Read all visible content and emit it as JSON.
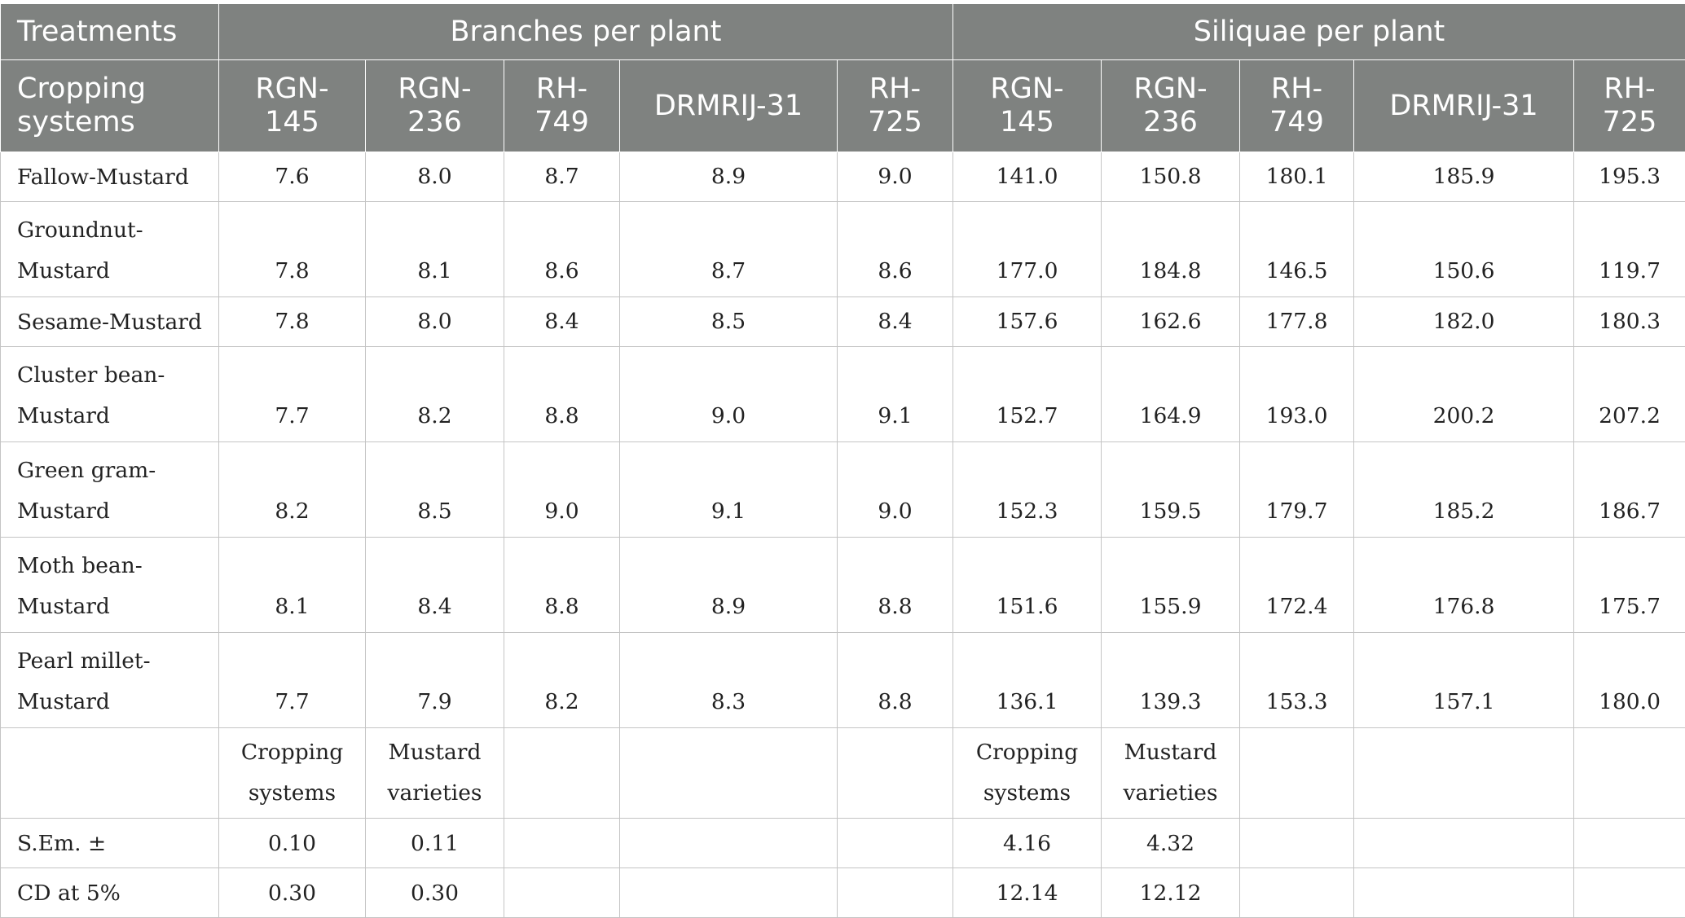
{
  "header": {
    "treatments": "Treatments",
    "branches": "Branches per plant",
    "siliquae": "Siliquae per plant",
    "cropping_systems": [
      "Cropping",
      "systems"
    ],
    "varieties": [
      [
        "RGN-",
        "145"
      ],
      [
        "RGN-",
        "236"
      ],
      [
        "RH-",
        "749"
      ],
      [
        "DRMRIJ-31"
      ],
      [
        "RH-",
        "725"
      ]
    ]
  },
  "rows": [
    {
      "label": [
        "Fallow-Mustard"
      ],
      "branches": [
        "7.6",
        "8.0",
        "8.7",
        "8.9",
        "9.0"
      ],
      "siliquae": [
        "141.0",
        "150.8",
        "180.1",
        "185.9",
        "195.3"
      ]
    },
    {
      "label": [
        "Groundnut-",
        "Mustard"
      ],
      "branches": [
        "7.8",
        "8.1",
        "8.6",
        "8.7",
        "8.6"
      ],
      "siliquae": [
        "177.0",
        "184.8",
        "146.5",
        "150.6",
        "119.7"
      ]
    },
    {
      "label": [
        "Sesame-Mustard"
      ],
      "branches": [
        "7.8",
        "8.0",
        "8.4",
        "8.5",
        "8.4"
      ],
      "siliquae": [
        "157.6",
        "162.6",
        "177.8",
        "182.0",
        "180.3"
      ]
    },
    {
      "label": [
        "Cluster bean-",
        "Mustard"
      ],
      "branches": [
        "7.7",
        "8.2",
        "8.8",
        "9.0",
        "9.1"
      ],
      "siliquae": [
        "152.7",
        "164.9",
        "193.0",
        "200.2",
        "207.2"
      ]
    },
    {
      "label": [
        "Green gram-",
        "Mustard"
      ],
      "branches": [
        "8.2",
        "8.5",
        "9.0",
        "9.1",
        "9.0"
      ],
      "siliquae": [
        "152.3",
        "159.5",
        "179.7",
        "185.2",
        "186.7"
      ]
    },
    {
      "label": [
        "Moth bean-",
        "Mustard"
      ],
      "branches": [
        "8.1",
        "8.4",
        "8.8",
        "8.9",
        "8.8"
      ],
      "siliquae": [
        "151.6",
        "155.9",
        "172.4",
        "176.8",
        "175.7"
      ]
    },
    {
      "label": [
        "Pearl millet-",
        "Mustard"
      ],
      "branches": [
        "7.7",
        "7.9",
        "8.2",
        "8.3",
        "8.8"
      ],
      "siliquae": [
        "136.1",
        "139.3",
        "153.3",
        "157.1",
        "180.0"
      ]
    }
  ],
  "stats_header": {
    "col1": [
      "Cropping",
      "systems"
    ],
    "col2": [
      "Mustard",
      "varieties"
    ]
  },
  "stats": [
    {
      "label": "S.Em. ±",
      "branches": [
        "0.10",
        "0.11"
      ],
      "siliquae": [
        "4.16",
        "4.32"
      ]
    },
    {
      "label": "CD at 5%",
      "branches": [
        "0.30",
        "0.30"
      ],
      "siliquae": [
        "12.14",
        "12.12"
      ]
    }
  ]
}
